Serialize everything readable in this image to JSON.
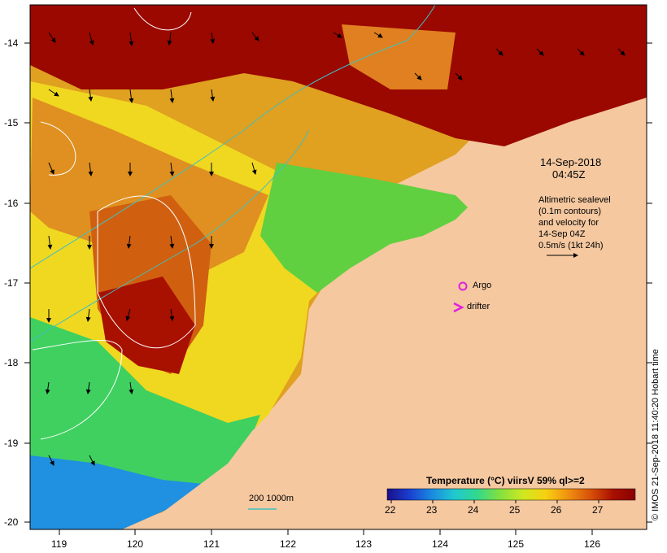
{
  "map": {
    "lat_ticks": [
      "-14",
      "-15",
      "-16",
      "-17",
      "-18",
      "-19",
      "-20"
    ],
    "lon_ticks": [
      "119",
      "120",
      "121",
      "122",
      "123",
      "124",
      "125",
      "126"
    ]
  },
  "timestamp": {
    "date": "14-Sep-2018",
    "time": "04:45Z"
  },
  "sealevel_note": {
    "line1": "Altimetric sealevel",
    "line2": "(0.1m contours)",
    "line3": "and velocity for",
    "line4": "14-Sep 04Z",
    "line5": "0.5m/s (1kt 24h)"
  },
  "legend": {
    "argo_label": "Argo",
    "drifter_label": "drifter",
    "argo_color": "#e020e0",
    "drifter_color": "#e020e0"
  },
  "depth_key": {
    "label": "200 1000m",
    "color": "#40c0c0"
  },
  "colorbar": {
    "title": "Temperature (°C) viirsV 59% ql>=2",
    "ticks": [
      "22",
      "23",
      "24",
      "25",
      "26",
      "27"
    ],
    "colors": [
      "#1a0f8a",
      "#1a3fd0",
      "#1a8ae0",
      "#20c8d0",
      "#30d890",
      "#80e040",
      "#d0e820",
      "#f8d010",
      "#f09010",
      "#d85008",
      "#a81000",
      "#8a0000"
    ]
  },
  "credit": "© IMOS 21-Sep-2018 11:40:20 Hobart time",
  "colors": {
    "land": "#f5c8a0",
    "contour_depth": "#40c0c0",
    "contour_sealevel": "#ffffff"
  }
}
